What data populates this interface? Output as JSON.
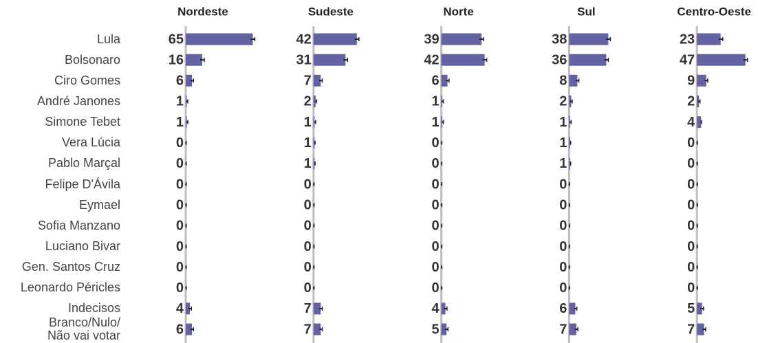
{
  "chart_data": {
    "type": "bar",
    "orientation": "horizontal",
    "color": "#6362a3",
    "xlim": [
      0,
      100
    ],
    "categories": [
      "Lula",
      "Bolsonaro",
      "Ciro Gomes",
      "André Janones",
      "Simone Tebet",
      "Vera Lúcia",
      "Pablo Marçal",
      "Felipe D'Ávila",
      "Eymael",
      "Sofia Manzano",
      "Luciano Bivar",
      "Gen. Santos Cruz",
      "Leonardo Péricles",
      "Indecisos",
      "Branco/Nulo/\nNão vai votar"
    ],
    "series": [
      {
        "name": "Nordeste",
        "values": [
          65,
          16,
          6,
          1,
          1,
          0,
          0,
          0,
          0,
          0,
          0,
          0,
          0,
          4,
          6
        ],
        "errors": [
          2,
          2,
          1.5,
          1,
          1,
          0.5,
          0.5,
          0.5,
          0.5,
          0.5,
          0.5,
          0.5,
          0.5,
          1.5,
          1.5
        ]
      },
      {
        "name": "Sudeste",
        "values": [
          42,
          31,
          7,
          2,
          1,
          1,
          1,
          0,
          0,
          0,
          0,
          0,
          0,
          7,
          7
        ],
        "errors": [
          2,
          2,
          1.5,
          1,
          1,
          0.5,
          0.5,
          0.5,
          0.5,
          0.5,
          0.5,
          0.5,
          0.5,
          1.5,
          1.5
        ]
      },
      {
        "name": "Norte",
        "values": [
          39,
          42,
          6,
          1,
          1,
          0,
          0,
          0,
          0,
          0,
          0,
          0,
          0,
          4,
          5
        ],
        "errors": [
          2,
          2,
          1.5,
          1,
          1,
          0.5,
          0.5,
          0.5,
          0.5,
          0.5,
          0.5,
          0.5,
          0.5,
          1.5,
          1.5
        ]
      },
      {
        "name": "Sul",
        "values": [
          38,
          36,
          8,
          2,
          1,
          1,
          1,
          0,
          0,
          0,
          0,
          0,
          0,
          6,
          7
        ],
        "errors": [
          2,
          2,
          1.5,
          1,
          1,
          0.5,
          0.5,
          0.5,
          0.5,
          0.5,
          0.5,
          0.5,
          0.5,
          1.5,
          1.5
        ]
      },
      {
        "name": "Centro-Oeste",
        "values": [
          23,
          47,
          9,
          2,
          4,
          0,
          0,
          0,
          0,
          0,
          0,
          0,
          0,
          5,
          7
        ],
        "errors": [
          2,
          2,
          1.5,
          1,
          0.5,
          0.5,
          0.5,
          0.5,
          0.5,
          0.5,
          0.5,
          0.5,
          0.5,
          1.5,
          1.5
        ]
      }
    ]
  }
}
